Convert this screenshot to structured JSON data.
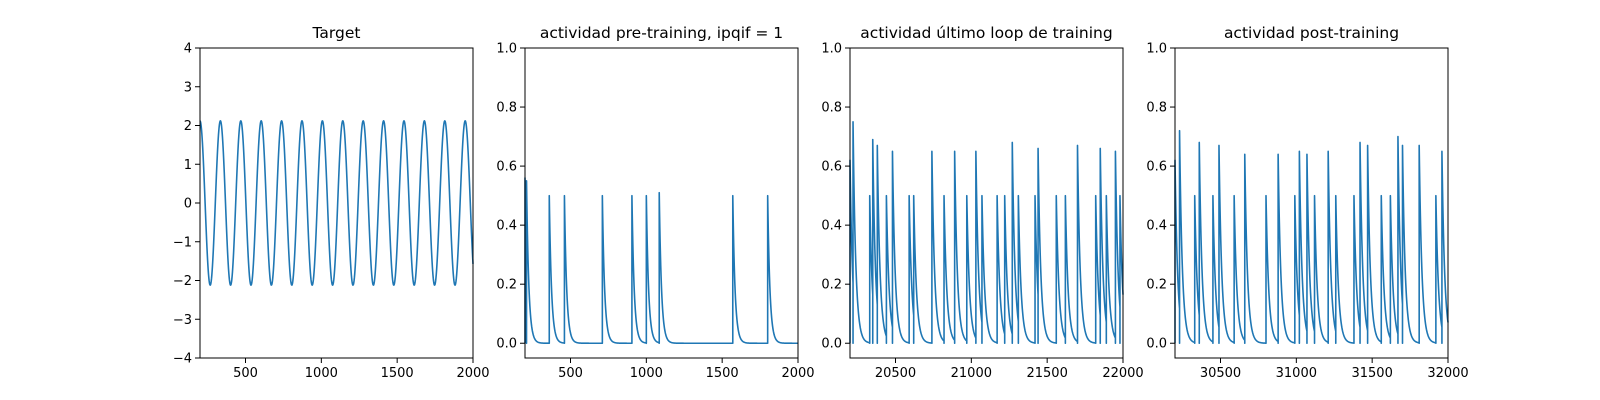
{
  "chart_data": [
    {
      "type": "line",
      "title": "Target",
      "xlim": [
        200,
        2000
      ],
      "ylim": [
        -4,
        4
      ],
      "xticks": [
        500,
        1000,
        1500,
        2000
      ],
      "yticks": [
        -4,
        -3,
        -2,
        -1,
        0,
        1,
        2,
        3,
        4
      ],
      "xtick_labels": [
        "500",
        "1000",
        "1500",
        "2000"
      ],
      "ytick_labels": [
        "−4",
        "−3",
        "−2",
        "−1",
        "0",
        "1",
        "2",
        "3",
        "4"
      ],
      "grid": false,
      "series": [
        {
          "kind": "sine",
          "amplitude": 2.12,
          "period": 134.5,
          "first_peak_x": 200,
          "color": "#1f77b4"
        }
      ]
    },
    {
      "type": "line",
      "title": "actividad pre-training, ipqif = 1",
      "xlim": [
        200,
        2000
      ],
      "ylim": [
        -0.05,
        1.0
      ],
      "xticks": [
        500,
        1000,
        1500,
        2000
      ],
      "yticks": [
        0.0,
        0.2,
        0.4,
        0.6,
        0.8,
        1.0
      ],
      "xtick_labels": [
        "500",
        "1000",
        "1500",
        "2000"
      ],
      "ytick_labels": [
        "0.0",
        "0.2",
        "0.4",
        "0.6",
        "0.8",
        "1.0"
      ],
      "grid": false,
      "series": [
        {
          "kind": "spikes",
          "color": "#1f77b4",
          "decay": 15,
          "spikes": [
            {
              "x": 200,
              "peak": 0.56
            },
            {
              "x": 210,
              "peak": 0.55
            },
            {
              "x": 360,
              "peak": 0.5
            },
            {
              "x": 460,
              "peak": 0.5
            },
            {
              "x": 710,
              "peak": 0.5
            },
            {
              "x": 905,
              "peak": 0.5
            },
            {
              "x": 1000,
              "peak": 0.5
            },
            {
              "x": 1085,
              "peak": 0.51
            },
            {
              "x": 1570,
              "peak": 0.5
            },
            {
              "x": 1800,
              "peak": 0.5
            }
          ]
        }
      ]
    },
    {
      "type": "line",
      "title": "actividad último loop de training",
      "xlim": [
        20200,
        22000
      ],
      "ylim": [
        -0.05,
        1.0
      ],
      "xticks": [
        20500,
        21000,
        21500,
        22000
      ],
      "yticks": [
        0.0,
        0.2,
        0.4,
        0.6,
        0.8,
        1.0
      ],
      "xtick_labels": [
        "20500",
        "21000",
        "21500",
        "22000"
      ],
      "ytick_labels": [
        "0.0",
        "0.2",
        "0.4",
        "0.6",
        "0.8",
        "1.0"
      ],
      "grid": false,
      "series": [
        {
          "kind": "spikes",
          "color": "#1f77b4",
          "decay": 18,
          "spikes": [
            {
              "x": 20200,
              "peak": 0.62
            },
            {
              "x": 20220,
              "peak": 0.75
            },
            {
              "x": 20330,
              "peak": 0.5
            },
            {
              "x": 20350,
              "peak": 0.69
            },
            {
              "x": 20380,
              "peak": 0.67
            },
            {
              "x": 20440,
              "peak": 0.5
            },
            {
              "x": 20480,
              "peak": 0.65
            },
            {
              "x": 20590,
              "peak": 0.5
            },
            {
              "x": 20620,
              "peak": 0.5
            },
            {
              "x": 20740,
              "peak": 0.65
            },
            {
              "x": 20820,
              "peak": 0.5
            },
            {
              "x": 20890,
              "peak": 0.65
            },
            {
              "x": 20970,
              "peak": 0.5
            },
            {
              "x": 21030,
              "peak": 0.65
            },
            {
              "x": 21070,
              "peak": 0.5
            },
            {
              "x": 21170,
              "peak": 0.5
            },
            {
              "x": 21220,
              "peak": 0.5
            },
            {
              "x": 21270,
              "peak": 0.68
            },
            {
              "x": 21310,
              "peak": 0.5
            },
            {
              "x": 21420,
              "peak": 0.5
            },
            {
              "x": 21440,
              "peak": 0.66
            },
            {
              "x": 21560,
              "peak": 0.5
            },
            {
              "x": 21620,
              "peak": 0.5
            },
            {
              "x": 21700,
              "peak": 0.67
            },
            {
              "x": 21820,
              "peak": 0.5
            },
            {
              "x": 21850,
              "peak": 0.66
            },
            {
              "x": 21890,
              "peak": 0.5
            },
            {
              "x": 21950,
              "peak": 0.65
            },
            {
              "x": 21980,
              "peak": 0.5
            }
          ]
        }
      ]
    },
    {
      "type": "line",
      "title": "actividad post-training",
      "xlim": [
        30200,
        32000
      ],
      "ylim": [
        -0.05,
        1.0
      ],
      "xticks": [
        30500,
        31000,
        31500,
        32000
      ],
      "yticks": [
        0.0,
        0.2,
        0.4,
        0.6,
        0.8,
        1.0
      ],
      "xtick_labels": [
        "30500",
        "31000",
        "31500",
        "32000"
      ],
      "ytick_labels": [
        "0.0",
        "0.2",
        "0.4",
        "0.6",
        "0.8",
        "1.0"
      ],
      "grid": false,
      "series": [
        {
          "kind": "spikes",
          "color": "#1f77b4",
          "decay": 18,
          "spikes": [
            {
              "x": 30200,
              "peak": 0.62
            },
            {
              "x": 30230,
              "peak": 0.72
            },
            {
              "x": 30330,
              "peak": 0.5
            },
            {
              "x": 30360,
              "peak": 0.68
            },
            {
              "x": 30450,
              "peak": 0.5
            },
            {
              "x": 30490,
              "peak": 0.67
            },
            {
              "x": 30590,
              "peak": 0.5
            },
            {
              "x": 30660,
              "peak": 0.64
            },
            {
              "x": 30800,
              "peak": 0.5
            },
            {
              "x": 30880,
              "peak": 0.64
            },
            {
              "x": 30990,
              "peak": 0.5
            },
            {
              "x": 31020,
              "peak": 0.65
            },
            {
              "x": 31070,
              "peak": 0.64
            },
            {
              "x": 31120,
              "peak": 0.5
            },
            {
              "x": 31210,
              "peak": 0.65
            },
            {
              "x": 31260,
              "peak": 0.5
            },
            {
              "x": 31380,
              "peak": 0.5
            },
            {
              "x": 31420,
              "peak": 0.68
            },
            {
              "x": 31470,
              "peak": 0.67
            },
            {
              "x": 31560,
              "peak": 0.5
            },
            {
              "x": 31620,
              "peak": 0.5
            },
            {
              "x": 31670,
              "peak": 0.7
            },
            {
              "x": 31700,
              "peak": 0.67
            },
            {
              "x": 31810,
              "peak": 0.67
            },
            {
              "x": 31920,
              "peak": 0.5
            },
            {
              "x": 31960,
              "peak": 0.65
            }
          ]
        }
      ]
    }
  ]
}
